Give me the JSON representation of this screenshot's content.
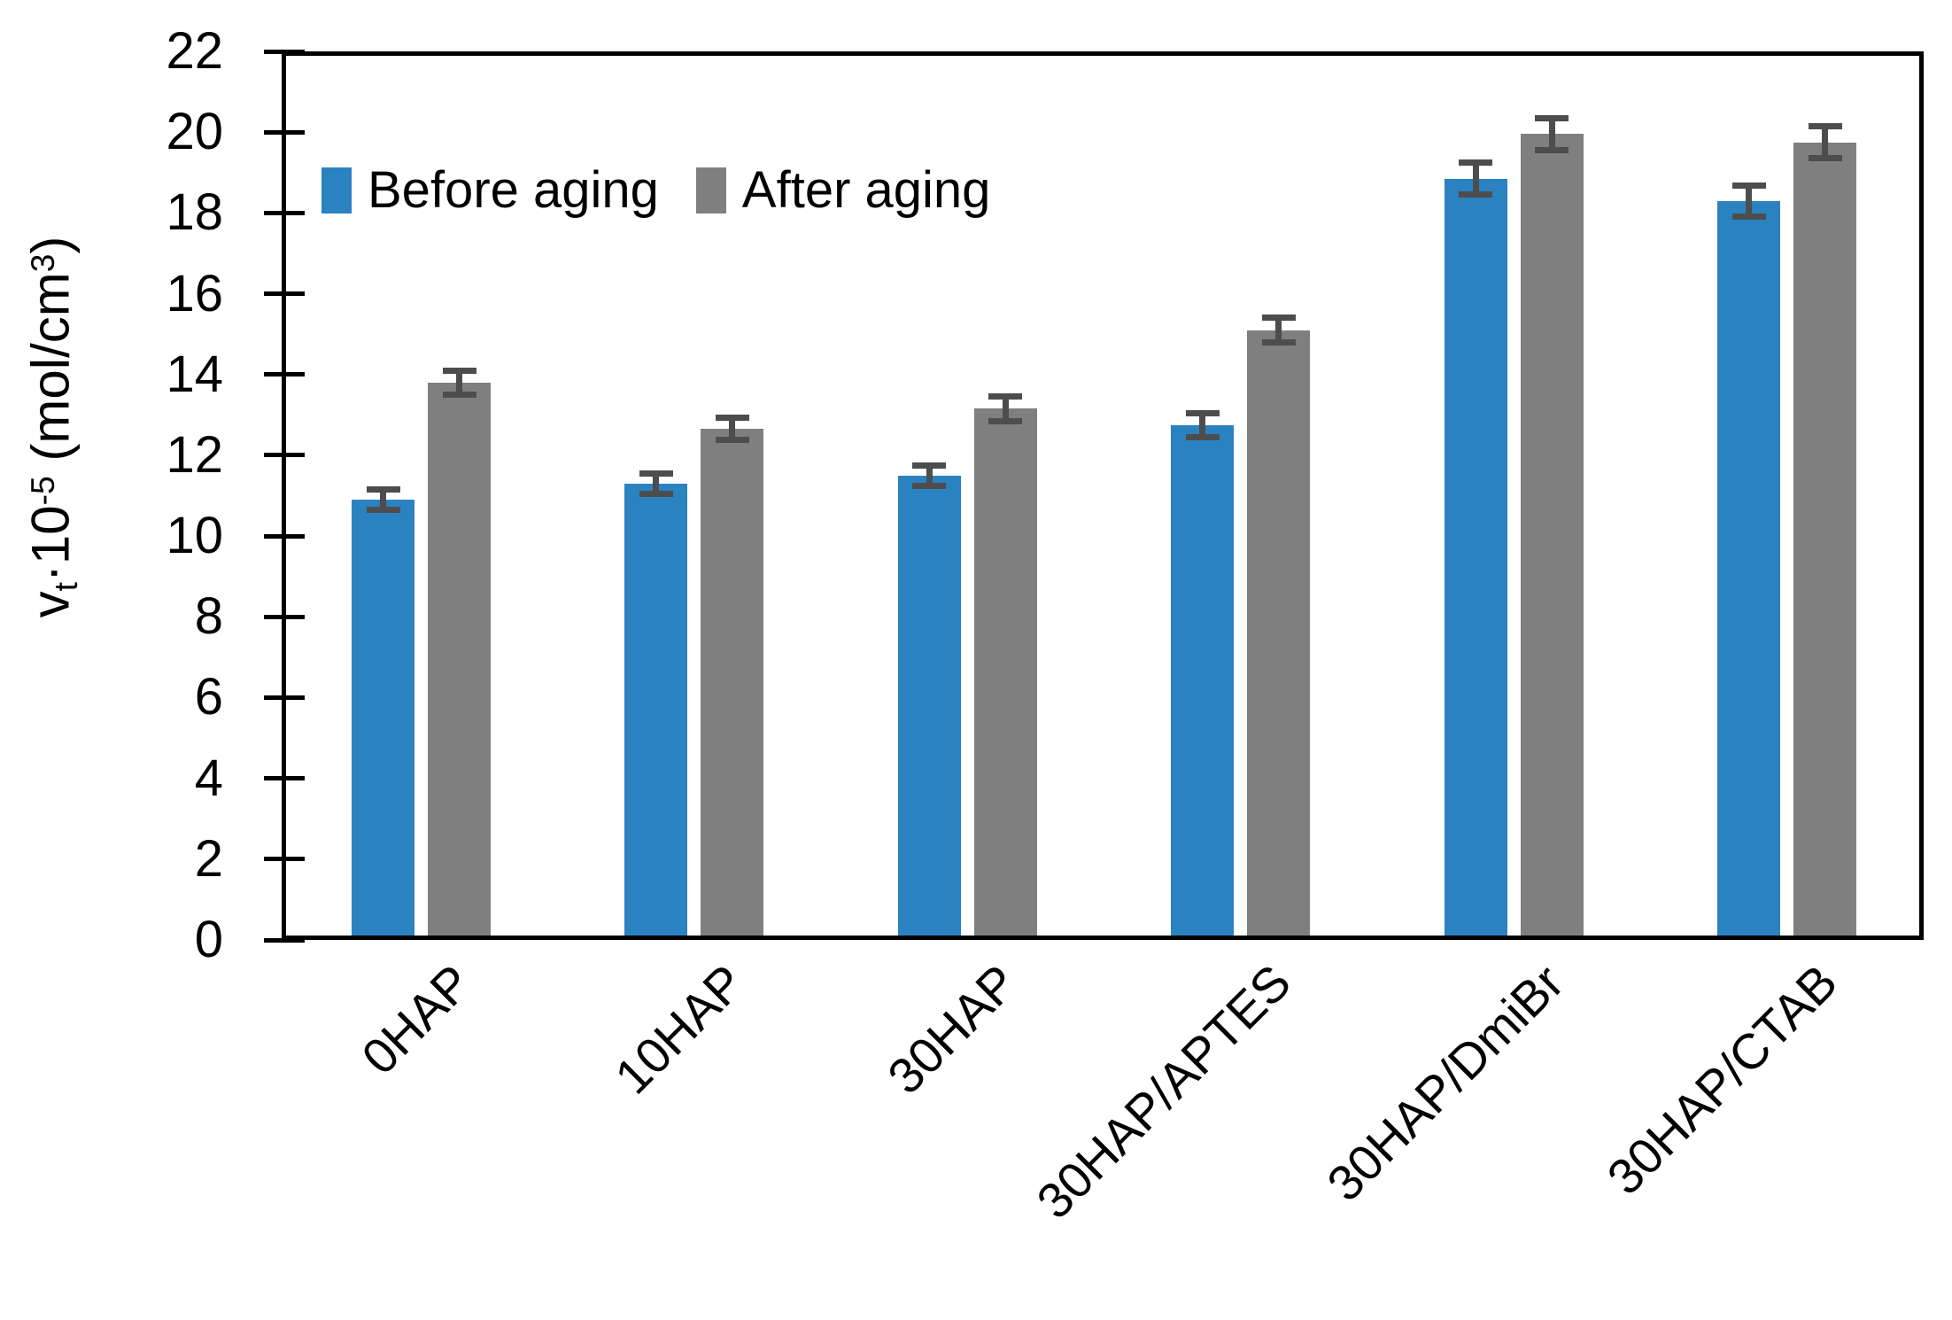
{
  "chart_data": {
    "type": "bar",
    "title": "",
    "categories": [
      "0HAP",
      "10HAP",
      "30HAP",
      "30HAP/APTES",
      "30HAP/DmiBr",
      "30HAP/CTAB"
    ],
    "series": [
      {
        "name": "Before aging",
        "color": "#2B82C1",
        "values": [
          10.9,
          11.3,
          11.5,
          12.75,
          18.85,
          18.3
        ],
        "errors": [
          0.25,
          0.25,
          0.25,
          0.3,
          0.4,
          0.38
        ]
      },
      {
        "name": "After aging",
        "color": "#7F7F7F",
        "values": [
          13.8,
          12.65,
          13.15,
          15.1,
          19.95,
          19.75
        ],
        "errors": [
          0.3,
          0.27,
          0.3,
          0.3,
          0.4,
          0.4
        ]
      }
    ],
    "xlabel": "",
    "ylabel_plain": "vt·10-5 (mol/cm3)",
    "ylabel_rich": [
      {
        "t": "v",
        "s": "normal"
      },
      {
        "t": "t",
        "s": "sub"
      },
      {
        "t": "·10",
        "s": "normal"
      },
      {
        "t": "-5",
        "s": "sup"
      },
      {
        "t": " (mol/cm",
        "s": "normal"
      },
      {
        "t": "3",
        "s": "sup"
      },
      {
        "t": ")",
        "s": "normal"
      }
    ],
    "ylim": [
      0,
      22
    ],
    "ytick_step": 2,
    "ytick_labels": [
      "0",
      "2",
      "4",
      "6",
      "8",
      "10",
      "12",
      "14",
      "16",
      "18",
      "20",
      "22"
    ],
    "grid": false,
    "legend_position": "top-left-inside",
    "error_bar_color": "#4D4D4D",
    "axis_color": "#000000",
    "plot_background": "#ffffff"
  }
}
